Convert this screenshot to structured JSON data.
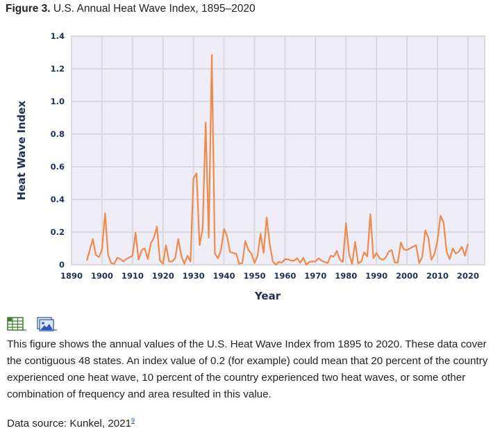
{
  "figure": {
    "label": "Figure 3.",
    "title": "U.S. Annual Heat Wave Index, 1895–2020"
  },
  "toolbar": {
    "icons": [
      {
        "name": "spreadsheet-download-icon",
        "label": "View data table",
        "color": "#3a7d2c"
      },
      {
        "name": "image-download-icon",
        "label": "View image",
        "color": "#2b57b8"
      }
    ]
  },
  "description": "This figure shows the annual values of the U.S. Heat Wave Index from 1895 to 2020. These data cover the contiguous 48 states. An index value of 0.2 (for example) could mean that 20 percent of the country experienced one heat wave, 10 percent of the country experienced two heat waves, or some other combination of frequency and area resulted in this value.",
  "source": {
    "prefix": "Data source: Kunkel, 2021",
    "footnote": "9"
  },
  "colors": {
    "line": "#f08a4b",
    "plot_bg": "#efedf7",
    "grid": "#d9d9de",
    "axis_text": "#1f2f5c"
  },
  "chart_data": {
    "type": "line",
    "title": "U.S. Annual Heat Wave Index, 1895–2020",
    "xlabel": "Year",
    "ylabel": "Heat Wave Index",
    "xlim": [
      1890,
      2025.5
    ],
    "ylim": [
      0,
      1.4
    ],
    "xticks": [
      1890,
      1900,
      1910,
      1920,
      1930,
      1940,
      1950,
      1960,
      1970,
      1980,
      1990,
      2000,
      2010,
      2020
    ],
    "yticks": [
      0,
      0.2,
      0.4,
      0.6,
      0.8,
      1.0,
      1.2,
      1.4
    ],
    "ytick_labels": [
      "0",
      "0.2",
      "0.4",
      "0.6",
      "0.8",
      "1.0",
      "1.2",
      "1.4"
    ],
    "grid": true,
    "legend": "none",
    "series": [
      {
        "name": "Heat Wave Index",
        "x_start": 1895,
        "values": [
          0.025,
          0.09,
          0.157,
          0.06,
          0.047,
          0.094,
          0.315,
          0.06,
          0.01,
          0.005,
          0.043,
          0.035,
          0.02,
          0.035,
          0.045,
          0.055,
          0.195,
          0.03,
          0.09,
          0.1,
          0.035,
          0.13,
          0.165,
          0.234,
          0.025,
          0.005,
          0.12,
          0.02,
          0.02,
          0.04,
          0.157,
          0.055,
          0.005,
          0.055,
          0.02,
          0.53,
          0.56,
          0.12,
          0.22,
          0.87,
          0.166,
          1.285,
          0.068,
          0.04,
          0.09,
          0.22,
          0.175,
          0.077,
          0.072,
          0.068,
          0.005,
          0.01,
          0.145,
          0.09,
          0.068,
          0.01,
          0.055,
          0.19,
          0.072,
          0.29,
          0.128,
          0.02,
          0.0,
          0.017,
          0.013,
          0.034,
          0.034,
          0.025,
          0.025,
          0.04,
          0.012,
          0.043,
          0.0,
          0.017,
          0.02,
          0.02,
          0.04,
          0.025,
          0.017,
          0.01,
          0.055,
          0.05,
          0.085,
          0.03,
          0.017,
          0.255,
          0.068,
          0.005,
          0.14,
          0.008,
          0.02,
          0.077,
          0.05,
          0.31,
          0.04,
          0.072,
          0.04,
          0.03,
          0.043,
          0.08,
          0.09,
          0.013,
          0.013,
          0.136,
          0.094,
          0.09,
          0.1,
          0.11,
          0.12,
          0.01,
          0.047,
          0.21,
          0.166,
          0.03,
          0.064,
          0.145,
          0.3,
          0.26,
          0.08,
          0.034,
          0.1,
          0.068,
          0.08,
          0.11,
          0.055,
          0.128
        ]
      }
    ]
  }
}
